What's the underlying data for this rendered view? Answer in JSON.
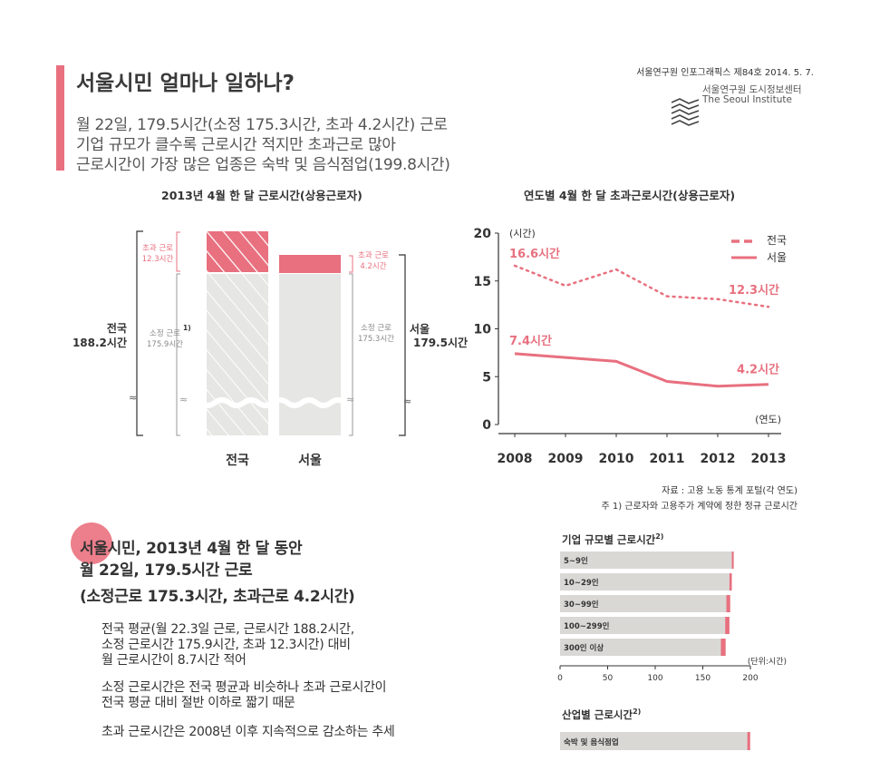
{
  "header": {
    "title": "서울시민 얼마나 일하나?",
    "sublines": [
      "월 22일, 179.5시간(소정 175.3시간, 초과 4.2시간) 근로",
      "기업 규모가 클수록 근로시간 적지만 초과근로 많아",
      "근로시간이 가장 많은 업종은 숙박 및 음식점업(199.8시간)"
    ],
    "publication": "서울연구원 인포그래픽스 제84호 2014. 5. 7.",
    "logo_korean": "서울연구원 도시정보센터",
    "logo_english": "The Seoul Institute"
  },
  "colors": {
    "accent": "#e8707f",
    "bar_gray": "#e6e6e4",
    "line": "#e8707f"
  },
  "chart_data": [
    {
      "type": "bar",
      "title": "2013년 4월 한 달 근로시간(상용근로자)",
      "categories": [
        "전국",
        "서울"
      ],
      "series": [
        {
          "name": "소정 근로",
          "values": [
            175.9,
            175.3
          ]
        },
        {
          "name": "초과 근로",
          "values": [
            12.3,
            4.2
          ]
        }
      ],
      "totals": [
        188.2,
        179.5
      ],
      "labels": {
        "national_total": [
          "전국",
          "188.2시간"
        ],
        "seoul_total": [
          "서울",
          "179.5시간"
        ],
        "national_regular": [
          "소정 근로",
          "175.9시간"
        ],
        "national_regular_note": "1)",
        "national_overtime": [
          "초과 근로",
          "12.3시간"
        ],
        "seoul_regular": [
          "소정 근로",
          "175.3시간"
        ],
        "seoul_overtime": [
          "초과 근로",
          "4.2시간"
        ]
      }
    },
    {
      "type": "line",
      "title": "연도별 4월 한 달 초과근로시간(상용근로자)",
      "x": [
        2008,
        2009,
        2010,
        2011,
        2012,
        2013
      ],
      "series": [
        {
          "name": "전국",
          "values": [
            16.6,
            14.5,
            16.2,
            13.4,
            13.1,
            12.3
          ]
        },
        {
          "name": "서울",
          "values": [
            7.4,
            7.0,
            6.6,
            4.5,
            4.0,
            4.2
          ]
        }
      ],
      "ylim": [
        0,
        20
      ],
      "yticks": [
        0,
        5,
        10,
        15,
        20
      ],
      "ylabel": "(시간)",
      "xlabel": "(연도)",
      "annotations": {
        "national_start": "16.6시간",
        "national_end": "12.3시간",
        "seoul_start": "7.4시간",
        "seoul_end": "4.2시간"
      },
      "legend": [
        "전국",
        "서울"
      ],
      "legend_position": "top-right"
    },
    {
      "type": "bar",
      "orientation": "horizontal",
      "title": "기업 규모별 근로시간",
      "title_note": "2)",
      "categories": [
        "5~9인",
        "10~29인",
        "30~99인",
        "100~299인",
        "300인 이상"
      ],
      "values": [
        182.5,
        180.5,
        178.8,
        178.0,
        174.0
      ],
      "overtime": [
        2.0,
        2.5,
        4.0,
        4.5,
        5.0
      ],
      "xlim": [
        0,
        200
      ],
      "xticks": [
        0,
        50,
        100,
        150,
        200
      ],
      "unit": "(단위:시간)"
    },
    {
      "type": "bar",
      "orientation": "horizontal",
      "title": "산업별 근로시간",
      "title_note": "2)",
      "categories": [
        "숙박 및 음식점업"
      ],
      "values": [
        199.8
      ],
      "xlim": [
        0,
        200
      ]
    }
  ],
  "notes": {
    "source": "자료 : 고용 노동 통계 포털(각 연도)",
    "footnote": "주 1) 근로자와 고용주가 계약에 정한 정규 근로시간"
  },
  "summary": {
    "headline": [
      "서울시민, 2013년 4월 한 달 동안",
      "월 22일, 179.5시간 근로",
      "(소정근로 175.3시간, 초과근로 4.2시간)"
    ],
    "bullets": [
      [
        "전국 평균(월 22.3일 근로, 근로시간 188.2시간,",
        "소정 근로시간 175.9시간, 초과 12.3시간) 대비",
        "월 근로시간이 8.7시간 적어"
      ],
      [
        "소정 근로시간은 전국 평균과 비슷하나 초과 근로시간이",
        "전국 평균 대비 절반 이하로 짧기 때문"
      ],
      [
        "초과 근로시간은 2008년 이후 지속적으로 감소하는 추세"
      ]
    ]
  }
}
